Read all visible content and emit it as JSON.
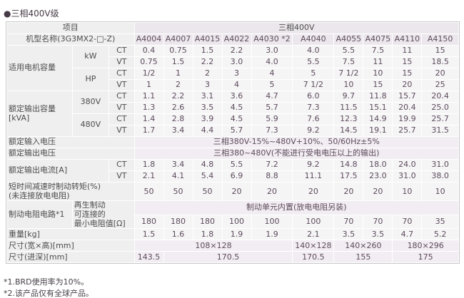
{
  "title": "●三相400V级",
  "colors": {
    "header_bg": "#ece7ec",
    "label_bg": "#f0eff0",
    "data_bg": "#f6f5f6",
    "span_bg": "#f2edf2",
    "text": "#5b4b5b",
    "border": "#c6c6c6"
  },
  "table": {
    "item_header": "项目",
    "model_header": "机型名称(3G3MX2-□-Z)",
    "group_header": "三相400V",
    "models": [
      "A4004",
      "A4007",
      "A4015",
      "A4022",
      "A4030 *2",
      "A4040",
      "A4055",
      "A4075",
      "A4110",
      "A4150"
    ],
    "sections": [
      {
        "type": "subgrid",
        "label": "适用电机容量",
        "subs": [
          {
            "label": "kW",
            "rows": [
              {
                "mode": "CT",
                "values": [
                  "0.4",
                  "0.75",
                  "1.5",
                  "2.2",
                  "3.0",
                  "4.0",
                  "5.5",
                  "7.5",
                  "11",
                  "15"
                ]
              },
              {
                "mode": "VT",
                "values": [
                  "0.75",
                  "1.5",
                  "2.2",
                  "3.0",
                  "4.0",
                  "5.5",
                  "7.5",
                  "11",
                  "15",
                  "18.5"
                ]
              }
            ]
          },
          {
            "label": "HP",
            "rows": [
              {
                "mode": "CT",
                "values": [
                  "1/2",
                  "1",
                  "2",
                  "3",
                  "4",
                  "5",
                  "7 1/2",
                  "10",
                  "15",
                  "20"
                ]
              },
              {
                "mode": "VT",
                "values": [
                  "1",
                  "2",
                  "3",
                  "4",
                  "5",
                  "7 1/2",
                  "10",
                  "15",
                  "20",
                  "25"
                ]
              }
            ]
          }
        ]
      },
      {
        "type": "subgrid",
        "label": "额定输出容量\n[kVA]",
        "subs": [
          {
            "label": "380V",
            "rows": [
              {
                "mode": "CT",
                "values": [
                  "1.1",
                  "2.2",
                  "3.1",
                  "3.6",
                  "4.7",
                  "6.0",
                  "9.7",
                  "11.8",
                  "15.7",
                  "20.4"
                ]
              },
              {
                "mode": "VT",
                "values": [
                  "1.3",
                  "2.6",
                  "3.5",
                  "4.5",
                  "5.7",
                  "7.3",
                  "11.5",
                  "15.1",
                  "20.4",
                  "25.0"
                ]
              }
            ]
          },
          {
            "label": "480V",
            "rows": [
              {
                "mode": "CT",
                "values": [
                  "1.4",
                  "2.8",
                  "3.9",
                  "4.5",
                  "5.9",
                  "7.6",
                  "12.3",
                  "14.9",
                  "19.9",
                  "25.7"
                ]
              },
              {
                "mode": "VT",
                "values": [
                  "1.7",
                  "3.4",
                  "4.4",
                  "5.7",
                  "7.3",
                  "9.2",
                  "14.5",
                  "19.1",
                  "25.7",
                  "31.5"
                ]
              }
            ]
          }
        ]
      },
      {
        "type": "spanrow",
        "label": "额定输入电压",
        "text": "三相380V-15%~480V+10%、50/60Hz±5%"
      },
      {
        "type": "spanrow",
        "label": "额定输出电压",
        "text": "三相380~480V(不能进行受电电压以上的输出)"
      },
      {
        "type": "modes",
        "label": "额定输出电流[A]",
        "rows": [
          {
            "mode": "CT",
            "values": [
              "1.8",
              "3.4",
              "4.8",
              "5.5",
              "7.2",
              "9.2",
              "14.8",
              "18.0",
              "24.0",
              "31.0"
            ]
          },
          {
            "mode": "VT",
            "values": [
              "2.1",
              "4.1",
              "5.4",
              "6.9",
              "8.8",
              "11.1",
              "17.5",
              "23.0",
              "31.0",
              "38.0"
            ]
          }
        ]
      },
      {
        "type": "values",
        "label": "短时间减速时制动转矩(%)\n(未连接放电电阻)",
        "values": [
          "50",
          "50",
          "50",
          "20",
          "20",
          "20",
          "20",
          "20",
          "10",
          "10"
        ]
      },
      {
        "type": "brake",
        "label": "制动电阻电路*1",
        "sub_label": "再生制动\n可连接的\n最小电阻值[Ω]",
        "text": "制动单元内置(放电电阻另装)",
        "values": [
          "180",
          "180",
          "180",
          "100",
          "100",
          "100",
          "70",
          "70",
          "70",
          "35"
        ]
      },
      {
        "type": "values",
        "label": "重量[kg]",
        "values": [
          "1.5",
          "1.6",
          "1.8",
          "1.9",
          "1.9",
          "2.1",
          "3.5",
          "3.5",
          "4.7",
          "5.2"
        ]
      },
      {
        "type": "spans",
        "label": "尺寸(宽×高)[mm]",
        "spans": [
          {
            "text": "108×128",
            "cols": 5
          },
          {
            "text": "140×128",
            "cols": 1
          },
          {
            "text": "140×260",
            "cols": 2
          },
          {
            "text": "180×296",
            "cols": 2
          }
        ]
      },
      {
        "type": "spans",
        "label": "尺寸(进深)[mm]",
        "spans": [
          {
            "text": "143.5",
            "cols": 1
          },
          {
            "text": "170.5",
            "cols": 4
          },
          {
            "text": "170.5",
            "cols": 1
          },
          {
            "text": "155",
            "cols": 2
          },
          {
            "text": "175",
            "cols": 2
          }
        ]
      }
    ]
  },
  "footnotes": [
    "*1.BRD使用率为10%。",
    "*2.该产品仅有全球产品。"
  ]
}
